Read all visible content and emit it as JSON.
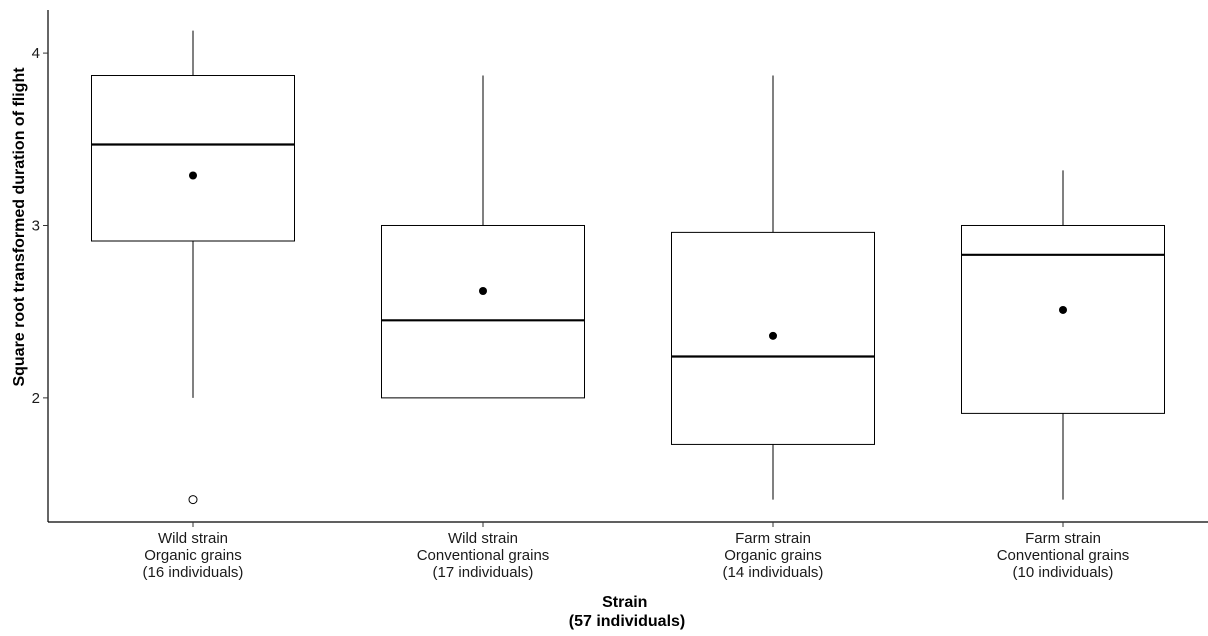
{
  "chart_data": {
    "type": "box",
    "xlabel": [
      "Strain",
      "(57 individuals)"
    ],
    "ylabel": "Square root transformed duration of flight",
    "yticks": [
      "2",
      "3",
      "4"
    ],
    "ylim": [
      1.28,
      4.25
    ],
    "grid": false,
    "legend": "none",
    "categories": [
      {
        "lines": [
          "Wild strain",
          "Organic grains",
          "(16 individuals)"
        ]
      },
      {
        "lines": [
          "Wild strain",
          "Conventional grains",
          "(17 individuals)"
        ]
      },
      {
        "lines": [
          "Farm strain",
          "Organic grains",
          "(14 individuals)"
        ]
      },
      {
        "lines": [
          "Farm strain",
          "Conventional grains",
          "(10 individuals)"
        ]
      }
    ],
    "boxes": [
      {
        "whisker_low": 2.0,
        "q1": 2.91,
        "median": 3.47,
        "q3": 3.87,
        "whisker_high": 4.13,
        "mean": 3.29,
        "outliers": [
          1.41
        ]
      },
      {
        "whisker_low": 2.0,
        "q1": 2.0,
        "median": 2.45,
        "q3": 3.0,
        "whisker_high": 3.87,
        "mean": 2.62,
        "outliers": []
      },
      {
        "whisker_low": 1.41,
        "q1": 1.73,
        "median": 2.24,
        "q3": 2.96,
        "whisker_high": 3.87,
        "mean": 2.36,
        "outliers": []
      },
      {
        "whisker_low": 1.41,
        "q1": 1.91,
        "median": 2.83,
        "q3": 3.0,
        "whisker_high": 3.32,
        "mean": 2.51,
        "outliers": []
      }
    ]
  }
}
